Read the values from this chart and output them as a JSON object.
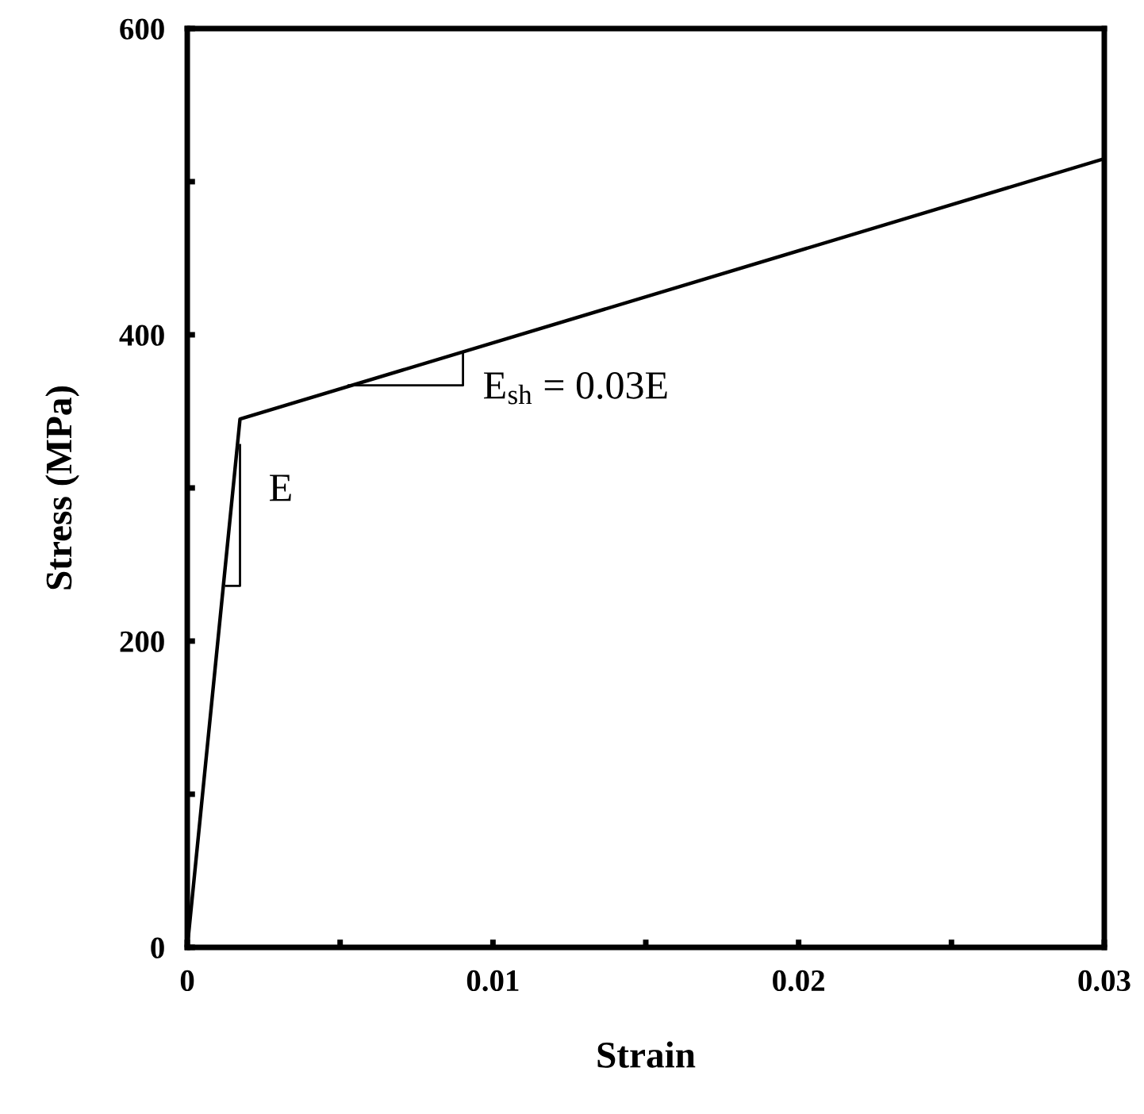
{
  "chart_data": {
    "type": "line",
    "xlabel": "Strain",
    "ylabel": "Stress (MPa)",
    "x": [
      0,
      0.001725,
      0.03
    ],
    "series": [
      {
        "color": "#000000",
        "values": [
          0,
          345,
          515
        ]
      }
    ],
    "xlim": [
      0,
      0.03
    ],
    "ylim": [
      0,
      600
    ],
    "xticks": [
      0,
      {
        "value": 0.005,
        "label": null
      },
      0.01,
      {
        "value": 0.015,
        "label": null
      },
      0.02,
      {
        "value": 0.025,
        "label": null
      },
      0.03
    ],
    "yticks": [
      0,
      {
        "value": 100,
        "label": null
      },
      200,
      {
        "value": 300,
        "label": null
      },
      400,
      {
        "value": 500,
        "label": null
      },
      600
    ],
    "annotations": [
      {
        "text": "E",
        "x": 0.001725,
        "y": 282
      },
      {
        "text": "E$_{sh}$ = 0.03E",
        "x": 0.00902,
        "y": 389
      }
    ],
    "grid": false,
    "legend": false,
    "marker": "none",
    "line_style": "solid"
  }
}
